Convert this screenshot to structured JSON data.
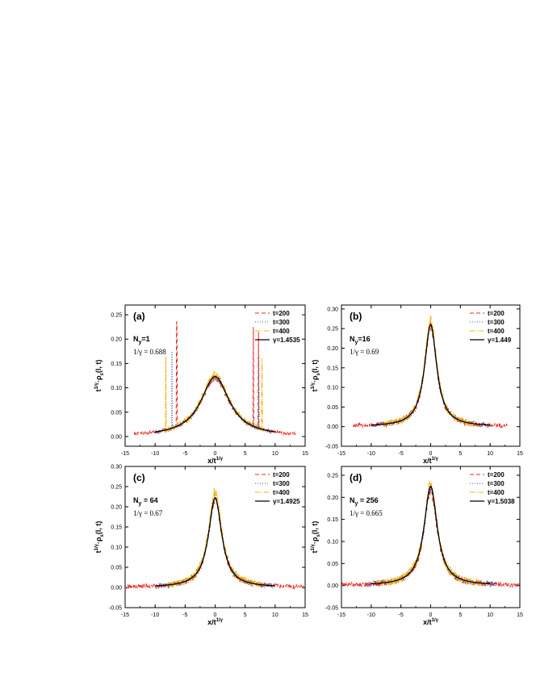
{
  "figure": {
    "ylabel": "t^{1/γ}·ρ_s(l, t)",
    "xlabel": "x/t^{1/γ}"
  },
  "colors": {
    "t200": "#e8251f",
    "t300": "#3a5ba8",
    "t400": "#f5b400",
    "fit": "#000000"
  },
  "chart_data": [
    {
      "type": "line",
      "panel": "(a)",
      "ny_label": "N",
      "ny_sub": "y",
      "ny_value": "=1",
      "inv_gamma_label": "1/γ = 0.688",
      "xlim": [
        -15,
        15
      ],
      "ylim": [
        -0.02,
        0.27
      ],
      "xticks": [
        -15,
        -10,
        -5,
        0,
        5,
        10,
        15
      ],
      "yticks": [
        0.0,
        0.05,
        0.1,
        0.15,
        0.2,
        0.25
      ],
      "ytick_labels": [
        "0.00",
        "0.05",
        "0.10",
        "0.15",
        "0.20",
        "0.25"
      ],
      "xlabel": "x/t^{1/γ}",
      "ylabel": "t^{1/γ}·ρ_s(l, t)",
      "legend_position": "top-right",
      "fit": {
        "gamma_label": "γ=1.4535",
        "peak": 0.123,
        "width": 2.9,
        "xrange": [
          -10,
          10
        ]
      },
      "series": [
        {
          "name": "t=200",
          "key": "t200",
          "style": "dashed",
          "peak": 0.12,
          "width": 2.9,
          "xrange": [
            -13.5,
            13.5
          ],
          "noise": 0.007,
          "spikes": [
            [
              -6.4,
              0.235
            ],
            [
              6.4,
              0.225
            ],
            [
              7.2,
              0.215
            ]
          ]
        },
        {
          "name": "t=300",
          "key": "t300",
          "style": "dotted",
          "peak": 0.122,
          "width": 2.9,
          "xrange": [
            -10,
            10
          ],
          "noise": 0.008,
          "spikes": [
            [
              -7.2,
              0.175
            ],
            [
              7.3,
              0.165
            ]
          ]
        },
        {
          "name": "t=400",
          "key": "t400",
          "style": "dashdot",
          "peak": 0.126,
          "width": 2.9,
          "xrange": [
            -8.5,
            8.5
          ],
          "noise": 0.009,
          "spikes": [
            [
              -8.2,
              0.165
            ],
            [
              7.8,
              0.16
            ]
          ]
        }
      ]
    },
    {
      "type": "line",
      "panel": "(b)",
      "ny_label": "N",
      "ny_sub": "y",
      "ny_value": "=16",
      "inv_gamma_label": "1/γ = 0.69",
      "xlim": [
        -15,
        15
      ],
      "ylim": [
        -0.05,
        0.31
      ],
      "xticks": [
        -15,
        -10,
        -5,
        0,
        5,
        10,
        15
      ],
      "yticks": [
        -0.05,
        0.0,
        0.05,
        0.1,
        0.15,
        0.2,
        0.25,
        0.3
      ],
      "ytick_labels": [
        "-0.05",
        "0.00",
        "0.05",
        "0.10",
        "0.15",
        "0.20",
        "0.25",
        "0.30"
      ],
      "xlabel": "x/t^{1/γ}",
      "ylabel": "t^{1/γ}·ρ_s(l, t)",
      "legend_position": "top-right",
      "fit": {
        "gamma_label": "γ=1.449",
        "peak": 0.26,
        "width": 1.25,
        "xrange": [
          -10,
          10
        ]
      },
      "series": [
        {
          "name": "t=200",
          "key": "t200",
          "style": "dashed",
          "peak": 0.255,
          "width": 1.25,
          "xrange": [
            -13,
            13
          ],
          "noise": 0.012,
          "spikes": []
        },
        {
          "name": "t=300",
          "key": "t300",
          "style": "dotted",
          "peak": 0.262,
          "width": 1.25,
          "xrange": [
            -10,
            10
          ],
          "noise": 0.012,
          "spikes": []
        },
        {
          "name": "t=400",
          "key": "t400",
          "style": "dashdot",
          "peak": 0.272,
          "width": 1.25,
          "xrange": [
            -8,
            8
          ],
          "noise": 0.014,
          "spikes": []
        }
      ]
    },
    {
      "type": "line",
      "panel": "(c)",
      "ny_label": "N",
      "ny_sub": "y",
      "ny_value": " = 64",
      "inv_gamma_label": "1/γ = 0.67",
      "xlim": [
        -15,
        15
      ],
      "ylim": [
        -0.05,
        0.3
      ],
      "xticks": [
        -15,
        -10,
        -5,
        0,
        5,
        10,
        15
      ],
      "yticks": [
        -0.05,
        0.0,
        0.05,
        0.1,
        0.15,
        0.2,
        0.25,
        0.3
      ],
      "ytick_labels": [
        "-0.05",
        "0.00",
        "0.05",
        "0.10",
        "0.15",
        "0.20",
        "0.25",
        "0.30"
      ],
      "xlabel": "x/t^{1/γ}",
      "ylabel": "t^{1/γ}·ρ_s(l, t)",
      "legend_position": "top-right",
      "fit": {
        "gamma_label": "γ=1.4925",
        "peak": 0.222,
        "width": 1.35,
        "xrange": [
          -10,
          10
        ]
      },
      "series": [
        {
          "name": "t=200",
          "key": "t200",
          "style": "dashed",
          "peak": 0.22,
          "width": 1.35,
          "xrange": [
            -15,
            15
          ],
          "noise": 0.011,
          "spikes": []
        },
        {
          "name": "t=300",
          "key": "t300",
          "style": "dotted",
          "peak": 0.228,
          "width": 1.35,
          "xrange": [
            -10,
            10
          ],
          "noise": 0.012,
          "spikes": []
        },
        {
          "name": "t=400",
          "key": "t400",
          "style": "dashdot",
          "peak": 0.238,
          "width": 1.35,
          "xrange": [
            -8,
            8
          ],
          "noise": 0.014,
          "spikes": []
        }
      ]
    },
    {
      "type": "line",
      "panel": "(d)",
      "ny_label": "N",
      "ny_sub": "y",
      "ny_value": " = 256",
      "inv_gamma_label": "1/γ = 0.665",
      "xlim": [
        -15,
        15
      ],
      "ylim": [
        -0.05,
        0.27
      ],
      "xticks": [
        -15,
        -10,
        -5,
        0,
        5,
        10,
        15
      ],
      "yticks": [
        -0.05,
        0.0,
        0.05,
        0.1,
        0.15,
        0.2,
        0.25
      ],
      "ytick_labels": [
        "-0.05",
        "0.00",
        "0.05",
        "0.10",
        "0.15",
        "0.20",
        "0.25"
      ],
      "xlabel": "x/t^{1/γ}",
      "ylabel": "t^{1/γ}·ρ_s(l, t)",
      "legend_position": "top-right",
      "fit": {
        "gamma_label": "γ=1.5038",
        "peak": 0.225,
        "width": 1.35,
        "xrange": [
          -10,
          10
        ]
      },
      "series": [
        {
          "name": "t=200",
          "key": "t200",
          "style": "dashed",
          "peak": 0.215,
          "width": 1.35,
          "xrange": [
            -15,
            15
          ],
          "noise": 0.011,
          "spikes": []
        },
        {
          "name": "t=300",
          "key": "t300",
          "style": "dotted",
          "peak": 0.22,
          "width": 1.35,
          "xrange": [
            -11,
            11
          ],
          "noise": 0.012,
          "spikes": []
        },
        {
          "name": "t=400",
          "key": "t400",
          "style": "dashdot",
          "peak": 0.23,
          "width": 1.35,
          "xrange": [
            -9,
            9
          ],
          "noise": 0.014,
          "spikes": []
        }
      ]
    }
  ]
}
